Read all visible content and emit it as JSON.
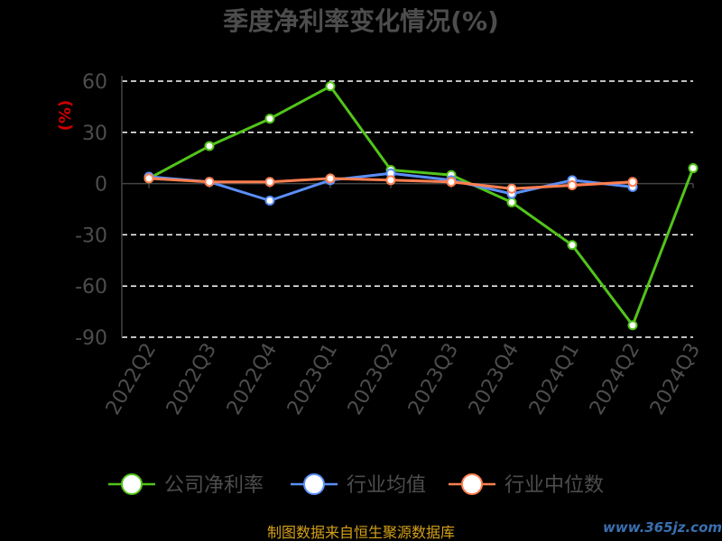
{
  "chart_data": {
    "type": "line",
    "title": "季度净利率变化情况(%)",
    "ylabel": "(%)",
    "xlabel": "",
    "categories": [
      "2022Q2",
      "2022Q3",
      "2022Q4",
      "2023Q1",
      "2023Q2",
      "2023Q3",
      "2023Q4",
      "2024Q1",
      "2024Q2",
      "2024Q3"
    ],
    "ylim": [
      -90,
      60
    ],
    "yticks": [
      "60",
      "30",
      "0",
      "-30",
      "-60",
      "-90"
    ],
    "grid": true,
    "legend_position": "bottom",
    "series": [
      {
        "name": "公司净利率",
        "color": "#52c41a",
        "values": [
          3,
          22,
          38,
          57,
          8,
          5,
          -11,
          -36,
          -83,
          9
        ]
      },
      {
        "name": "行业均值",
        "color": "#5b8ff9",
        "values": [
          4,
          1,
          -10,
          2,
          6,
          2,
          -6,
          2,
          -2,
          null
        ]
      },
      {
        "name": "行业中位数",
        "color": "#ff7f50",
        "values": [
          3,
          1,
          1,
          3,
          2,
          1,
          -3,
          -1,
          1,
          null
        ]
      }
    ]
  },
  "footer": {
    "source": "制图数据来自恒生聚源数据库",
    "watermark": "www.365jz.com"
  }
}
